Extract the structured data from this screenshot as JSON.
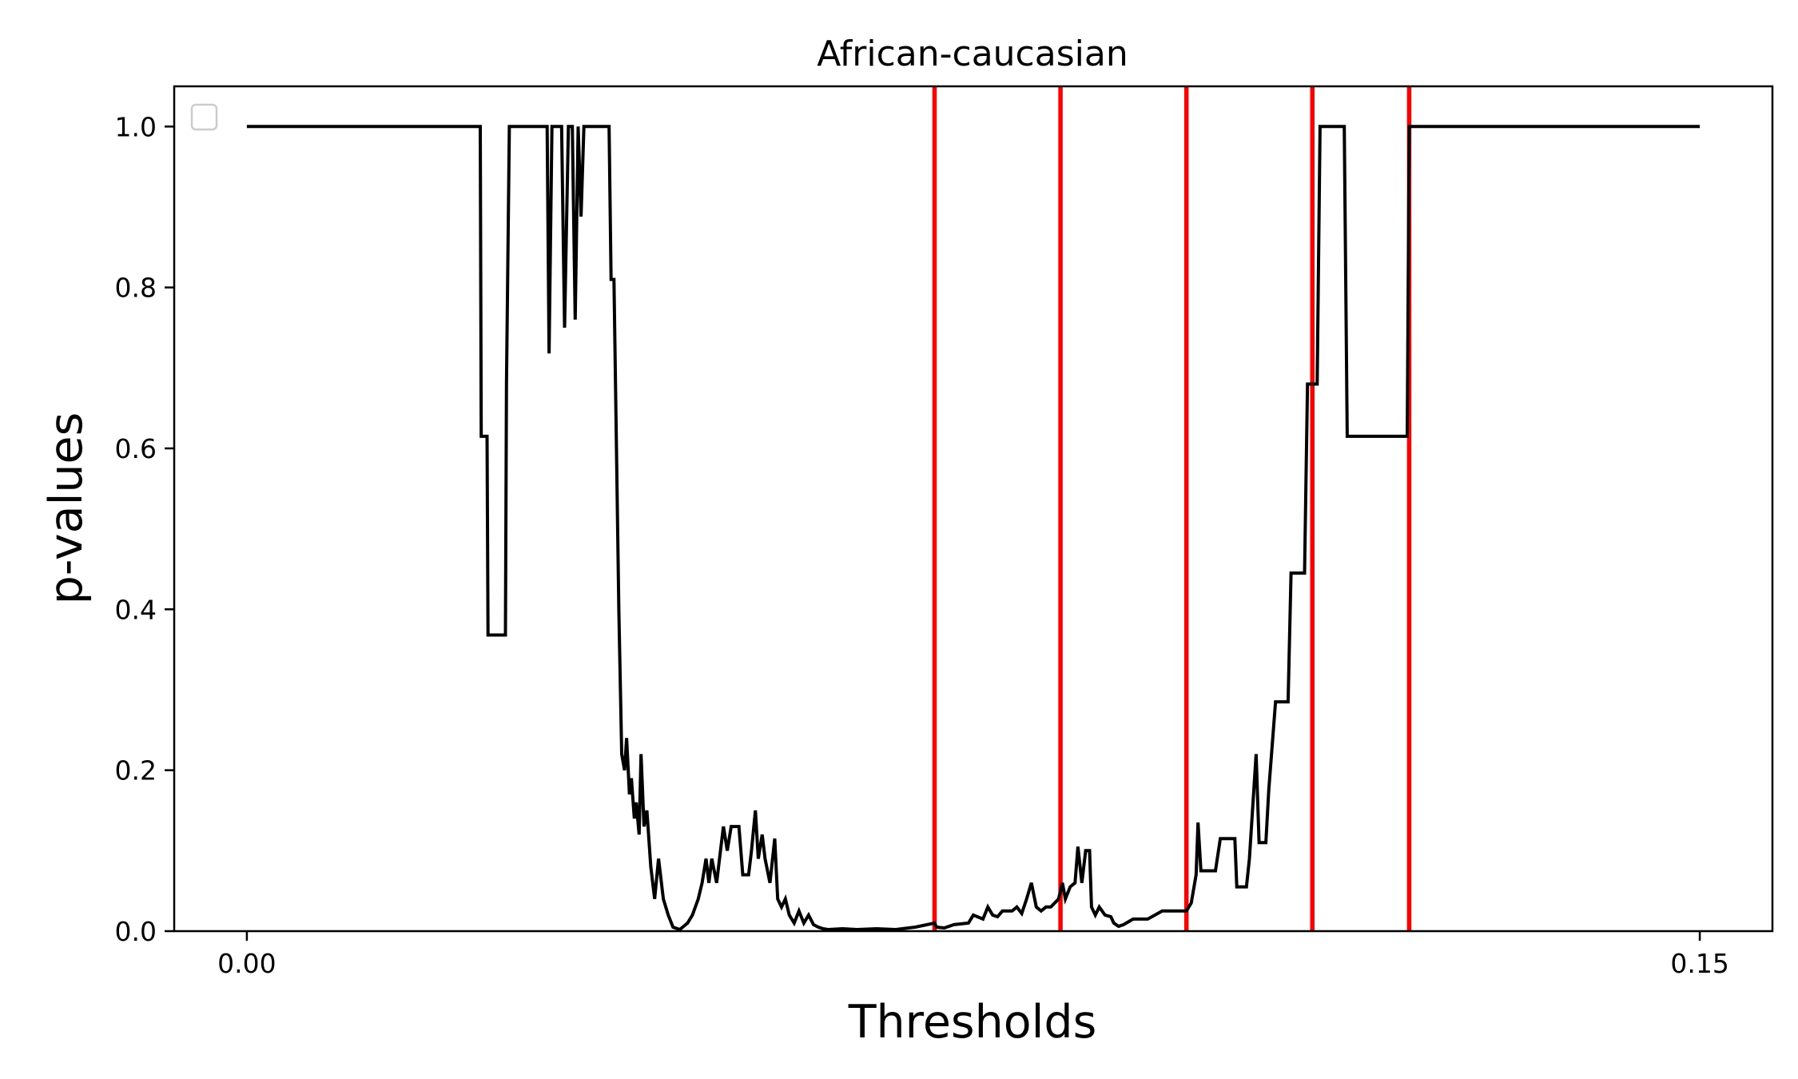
{
  "chart_data": {
    "type": "line",
    "title": "African-caucasian",
    "xlabel": "Thresholds",
    "ylabel": "p-values",
    "xlim": [
      -0.0075,
      0.1575
    ],
    "ylim": [
      0.0,
      1.05
    ],
    "x_ticks": [
      0.0,
      0.15
    ],
    "x_tick_labels": [
      "0.00",
      "0.15"
    ],
    "y_ticks": [
      0.0,
      0.2,
      0.4,
      0.6,
      0.8,
      1.0
    ],
    "y_tick_labels": [
      "0.0",
      "0.2",
      "0.4",
      "0.6",
      "0.8",
      "1.0"
    ],
    "grid": false,
    "legend": {
      "placement": "upper-left",
      "entries": []
    },
    "series": [
      {
        "color": "#000000",
        "points": [
          [
            0.0,
            1.0
          ],
          [
            0.0241,
            1.0
          ],
          [
            0.0242,
            0.615
          ],
          [
            0.0248,
            0.615
          ],
          [
            0.0249,
            0.368
          ],
          [
            0.0267,
            0.368
          ],
          [
            0.0268,
            0.68
          ],
          [
            0.0271,
            1.0
          ],
          [
            0.031,
            1.0
          ],
          [
            0.0312,
            0.718
          ],
          [
            0.0315,
            1.0
          ],
          [
            0.0325,
            1.0
          ],
          [
            0.0328,
            0.75
          ],
          [
            0.0332,
            1.0
          ],
          [
            0.0336,
            1.0
          ],
          [
            0.0339,
            0.76
          ],
          [
            0.0342,
            1.0
          ],
          [
            0.0345,
            0.888
          ],
          [
            0.0348,
            1.0
          ],
          [
            0.0374,
            1.0
          ],
          [
            0.0376,
            0.81
          ],
          [
            0.0379,
            0.81
          ],
          [
            0.0384,
            0.4
          ],
          [
            0.0387,
            0.22
          ],
          [
            0.039,
            0.2
          ],
          [
            0.0392,
            0.24
          ],
          [
            0.0395,
            0.17
          ],
          [
            0.0397,
            0.19
          ],
          [
            0.04,
            0.14
          ],
          [
            0.0402,
            0.16
          ],
          [
            0.0405,
            0.12
          ],
          [
            0.0407,
            0.22
          ],
          [
            0.041,
            0.13
          ],
          [
            0.0413,
            0.15
          ],
          [
            0.0417,
            0.08
          ],
          [
            0.0421,
            0.04
          ],
          [
            0.0425,
            0.09
          ],
          [
            0.043,
            0.04
          ],
          [
            0.0435,
            0.02
          ],
          [
            0.044,
            0.005
          ],
          [
            0.0447,
            0.002
          ],
          [
            0.0455,
            0.01
          ],
          [
            0.046,
            0.02
          ],
          [
            0.0466,
            0.04
          ],
          [
            0.047,
            0.06
          ],
          [
            0.0474,
            0.09
          ],
          [
            0.0477,
            0.06
          ],
          [
            0.048,
            0.09
          ],
          [
            0.0485,
            0.06
          ],
          [
            0.0488,
            0.09
          ],
          [
            0.0492,
            0.13
          ],
          [
            0.0496,
            0.1
          ],
          [
            0.05,
            0.13
          ],
          [
            0.0508,
            0.13
          ],
          [
            0.0512,
            0.07
          ],
          [
            0.0518,
            0.07
          ],
          [
            0.0521,
            0.1
          ],
          [
            0.0525,
            0.15
          ],
          [
            0.0528,
            0.09
          ],
          [
            0.0532,
            0.12
          ],
          [
            0.0535,
            0.09
          ],
          [
            0.054,
            0.06
          ],
          [
            0.0545,
            0.115
          ],
          [
            0.0548,
            0.04
          ],
          [
            0.0552,
            0.03
          ],
          [
            0.0556,
            0.04
          ],
          [
            0.056,
            0.02
          ],
          [
            0.0565,
            0.01
          ],
          [
            0.057,
            0.025
          ],
          [
            0.0575,
            0.01
          ],
          [
            0.058,
            0.02
          ],
          [
            0.0585,
            0.008
          ],
          [
            0.059,
            0.005
          ],
          [
            0.0595,
            0.003
          ],
          [
            0.06,
            0.002
          ],
          [
            0.0615,
            0.003
          ],
          [
            0.063,
            0.002
          ],
          [
            0.065,
            0.003
          ],
          [
            0.067,
            0.002
          ],
          [
            0.069,
            0.005
          ],
          [
            0.071,
            0.01
          ],
          [
            0.0712,
            0.005
          ],
          [
            0.072,
            0.004
          ],
          [
            0.073,
            0.008
          ],
          [
            0.0745,
            0.01
          ],
          [
            0.075,
            0.02
          ],
          [
            0.076,
            0.015
          ],
          [
            0.0765,
            0.03
          ],
          [
            0.077,
            0.02
          ],
          [
            0.0775,
            0.018
          ],
          [
            0.078,
            0.025
          ],
          [
            0.079,
            0.025
          ],
          [
            0.0795,
            0.03
          ],
          [
            0.08,
            0.022
          ],
          [
            0.0805,
            0.04
          ],
          [
            0.081,
            0.06
          ],
          [
            0.0815,
            0.03
          ],
          [
            0.082,
            0.025
          ],
          [
            0.0825,
            0.03
          ],
          [
            0.083,
            0.03
          ],
          [
            0.0838,
            0.04
          ],
          [
            0.0842,
            0.06
          ],
          [
            0.0845,
            0.04
          ],
          [
            0.085,
            0.055
          ],
          [
            0.0855,
            0.06
          ],
          [
            0.0858,
            0.105
          ],
          [
            0.0862,
            0.06
          ],
          [
            0.0866,
            0.1
          ],
          [
            0.087,
            0.1
          ],
          [
            0.0872,
            0.03
          ],
          [
            0.0876,
            0.02
          ],
          [
            0.088,
            0.03
          ],
          [
            0.0886,
            0.02
          ],
          [
            0.0892,
            0.018
          ],
          [
            0.0895,
            0.01
          ],
          [
            0.09,
            0.006
          ],
          [
            0.0905,
            0.008
          ],
          [
            0.0915,
            0.015
          ],
          [
            0.093,
            0.015
          ],
          [
            0.0945,
            0.025
          ],
          [
            0.097,
            0.025
          ],
          [
            0.0975,
            0.035
          ],
          [
            0.098,
            0.07
          ],
          [
            0.0982,
            0.135
          ],
          [
            0.0985,
            0.075
          ],
          [
            0.1,
            0.075
          ],
          [
            0.1005,
            0.115
          ],
          [
            0.102,
            0.115
          ],
          [
            0.1022,
            0.055
          ],
          [
            0.1032,
            0.055
          ],
          [
            0.1035,
            0.09
          ],
          [
            0.1042,
            0.22
          ],
          [
            0.1045,
            0.11
          ],
          [
            0.1052,
            0.11
          ],
          [
            0.1055,
            0.175
          ],
          [
            0.1062,
            0.285
          ],
          [
            0.1075,
            0.285
          ],
          [
            0.1078,
            0.445
          ],
          [
            0.1092,
            0.445
          ],
          [
            0.1095,
            0.68
          ],
          [
            0.1105,
            0.68
          ],
          [
            0.1108,
            1.0
          ],
          [
            0.1133,
            1.0
          ],
          [
            0.1136,
            0.615
          ],
          [
            0.1198,
            0.615
          ],
          [
            0.12,
            1.0
          ],
          [
            0.15,
            1.0
          ]
        ]
      }
    ],
    "vlines": {
      "color": "#ff0000",
      "x": [
        0.071,
        0.084,
        0.097,
        0.11,
        0.12
      ]
    }
  }
}
